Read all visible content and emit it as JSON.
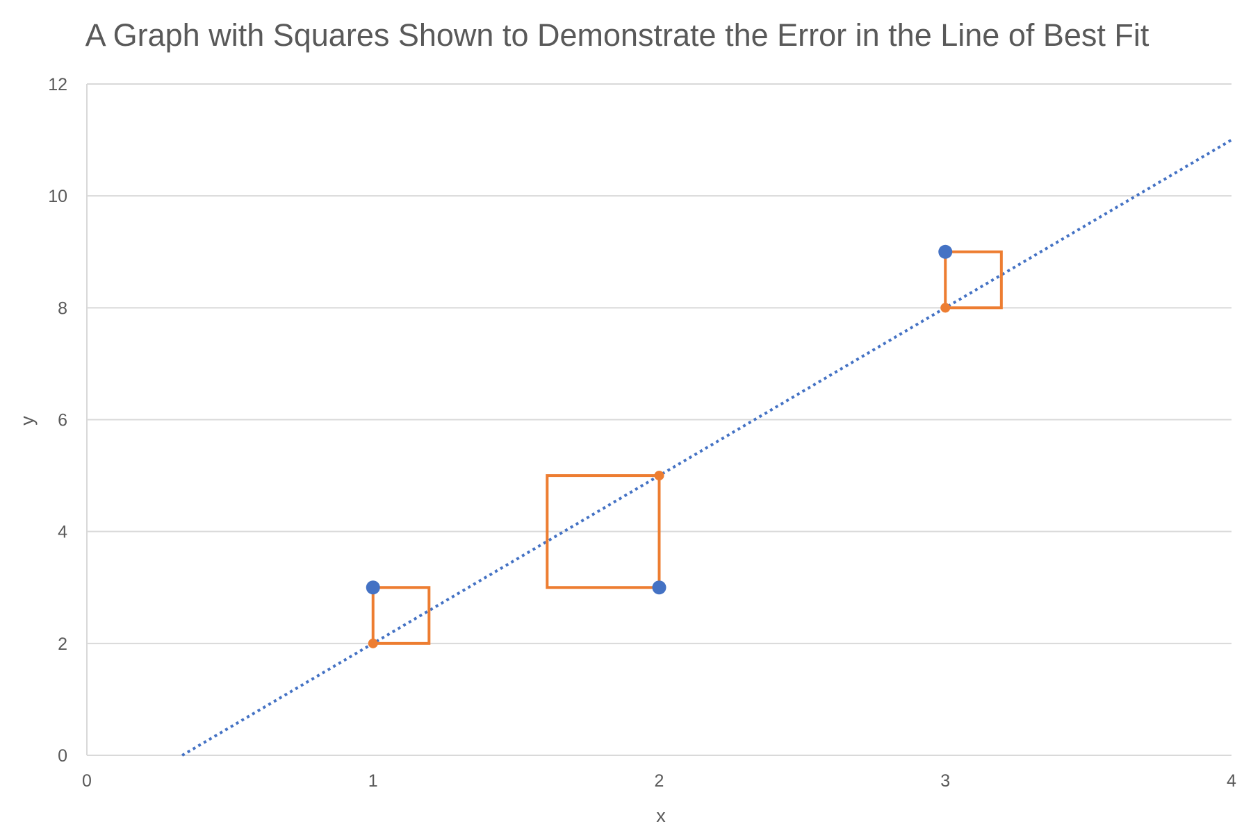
{
  "chart_data": {
    "type": "scatter",
    "title": "A Graph with Squares Shown to Demonstrate the Error in the Line of Best Fit",
    "xlabel": "x",
    "ylabel": "y",
    "xlim": [
      0,
      4
    ],
    "ylim": [
      0,
      12
    ],
    "x_ticks": [
      "0",
      "1",
      "2",
      "3",
      "4"
    ],
    "y_ticks": [
      "0",
      "2",
      "4",
      "6",
      "8",
      "10",
      "12"
    ],
    "grid": "horizontal",
    "legend": "none",
    "series": [
      {
        "points": [
          {
            "x": 1,
            "y": 3
          },
          {
            "x": 2,
            "y": 3
          },
          {
            "x": 3,
            "y": 9
          }
        ],
        "color": "#4472C4",
        "marker": "circle"
      },
      {
        "points": [
          {
            "x": 1,
            "y": 2
          },
          {
            "x": 2,
            "y": 5
          },
          {
            "x": 3,
            "y": 8
          }
        ],
        "color": "#ED7D31",
        "marker": "circle"
      }
    ],
    "trendline": {
      "type": "linear",
      "style": "dotted",
      "color": "#4472C4",
      "slope": 3,
      "intercept": -1,
      "x_range": [
        0.333,
        4
      ]
    },
    "error_squares": [
      {
        "x": 1,
        "y_actual": 3,
        "y_fit": 2,
        "side": 1
      },
      {
        "x": 2,
        "y_actual": 3,
        "y_fit": 5,
        "side": 2
      },
      {
        "x": 3,
        "y_actual": 9,
        "y_fit": 8,
        "side": 1
      }
    ],
    "colors": {
      "square_stroke": "#ED7D31",
      "grid": "#D9D9D9",
      "text": "#595959"
    }
  }
}
